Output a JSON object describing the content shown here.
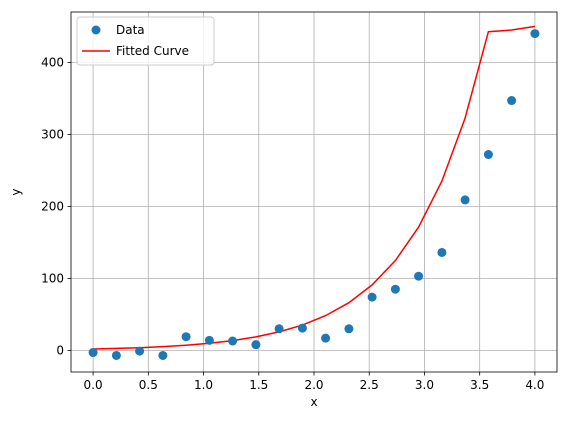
{
  "chart_data": {
    "type": "scatter",
    "xlabel": "x",
    "ylabel": "y",
    "xlim": [
      -0.2,
      4.2
    ],
    "ylim": [
      -30,
      470
    ],
    "xticks": [
      0.0,
      0.5,
      1.0,
      1.5,
      2.0,
      2.5,
      3.0,
      3.5,
      4.0
    ],
    "xtick_labels": [
      "0.0",
      "0.5",
      "1.0",
      "1.5",
      "2.0",
      "2.5",
      "3.0",
      "3.5",
      "4.0"
    ],
    "yticks": [
      0,
      100,
      200,
      300,
      400
    ],
    "ytick_labels": [
      "0",
      "100",
      "200",
      "300",
      "400"
    ],
    "grid": true,
    "legend_position": "top-left",
    "series": [
      {
        "name": "Data",
        "kind": "scatter",
        "color": "#1f77b4",
        "x": [
          0.0,
          0.211,
          0.421,
          0.632,
          0.842,
          1.053,
          1.263,
          1.474,
          1.684,
          1.895,
          2.105,
          2.316,
          2.526,
          2.737,
          2.947,
          3.158,
          3.368,
          3.579,
          3.789,
          4.0
        ],
        "y": [
          -3,
          -7,
          -1,
          -7,
          19,
          14,
          13,
          8,
          30,
          31,
          17,
          30,
          74,
          85,
          103,
          136,
          209,
          272,
          347,
          440
        ]
      },
      {
        "name": "Fitted Curve",
        "kind": "line",
        "color": "#ff0000",
        "x": [
          0.0,
          0.211,
          0.421,
          0.632,
          0.842,
          1.053,
          1.263,
          1.474,
          1.684,
          1.895,
          2.105,
          2.316,
          2.526,
          2.737,
          2.947,
          3.158,
          3.368,
          3.579,
          3.789,
          4.0
        ],
        "y": [
          2.0,
          2.8,
          3.8,
          5.3,
          7.2,
          9.9,
          13.6,
          18.7,
          25.7,
          35.2,
          48.3,
          66.3,
          91.0,
          124.8,
          171.3,
          235.1,
          322.6,
          442.7,
          445.0,
          450.0
        ]
      }
    ]
  }
}
